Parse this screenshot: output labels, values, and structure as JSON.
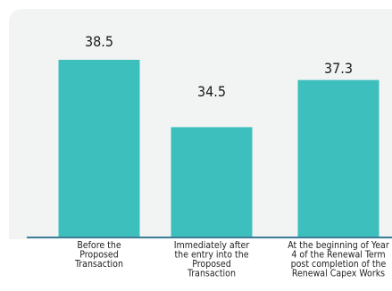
{
  "chart_data": {
    "type": "bar",
    "categories": [
      [
        "Before the",
        "Proposed",
        "Transaction"
      ],
      [
        "Immediately after",
        "the entry into the",
        "Proposed",
        "Transaction"
      ],
      [
        "At the beginning of Year",
        "4 of the Renewal Term",
        "post completion of the",
        "Renewal Capex Works"
      ]
    ],
    "values": [
      38.5,
      34.5,
      37.3
    ],
    "value_labels": [
      "38.5",
      "34.5",
      "37.3"
    ],
    "ylim": [
      28,
      40
    ],
    "grid": false,
    "legend": "none",
    "colors": {
      "bar": "#3dbfbd",
      "axis": "#3e7f97",
      "background": "#f2f4f4"
    }
  }
}
